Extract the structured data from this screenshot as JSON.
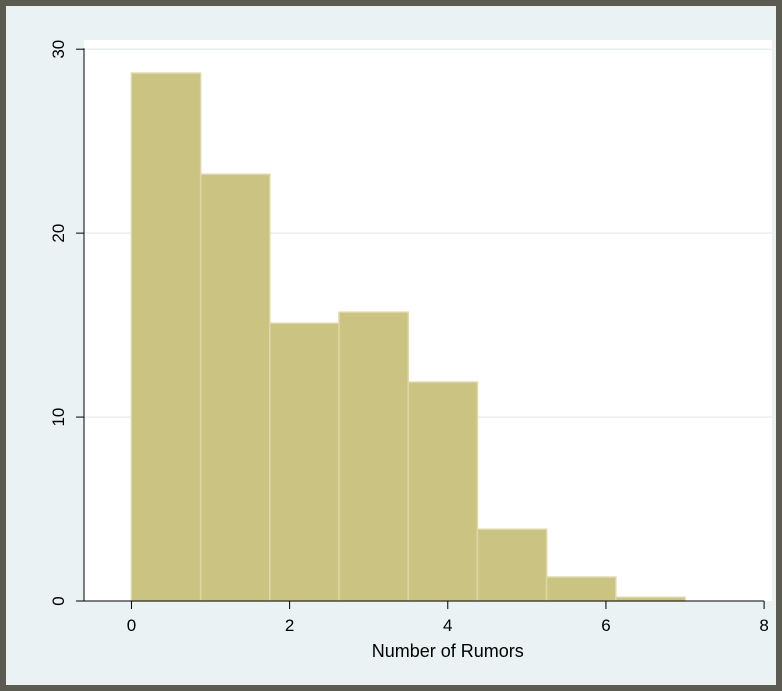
{
  "chart_data": {
    "type": "bar",
    "chart_subtype": "histogram",
    "xlabel": "Number of Rumors",
    "ylabel": "",
    "xlim": [
      -0.6,
      8.1
    ],
    "ylim": [
      0,
      30.5
    ],
    "x_ticks": [
      0,
      2,
      4,
      6,
      8
    ],
    "y_ticks": [
      0,
      10,
      20,
      30
    ],
    "grid": true,
    "legend": "none",
    "bin_edges": [
      0,
      0.875,
      1.75,
      2.625,
      3.5,
      4.375,
      5.25,
      6.125,
      7.0
    ],
    "values": [
      28.7,
      23.2,
      15.1,
      15.7,
      11.9,
      3.9,
      1.3,
      0.2
    ],
    "colors": {
      "bar_fill": "#cbc382",
      "bar_edge": "#ddd7a8",
      "plot_bg": "#ffffff",
      "outer_bg": "#eaf2f3",
      "frame": "#5b5b51",
      "grid": "#e9eef0"
    }
  }
}
